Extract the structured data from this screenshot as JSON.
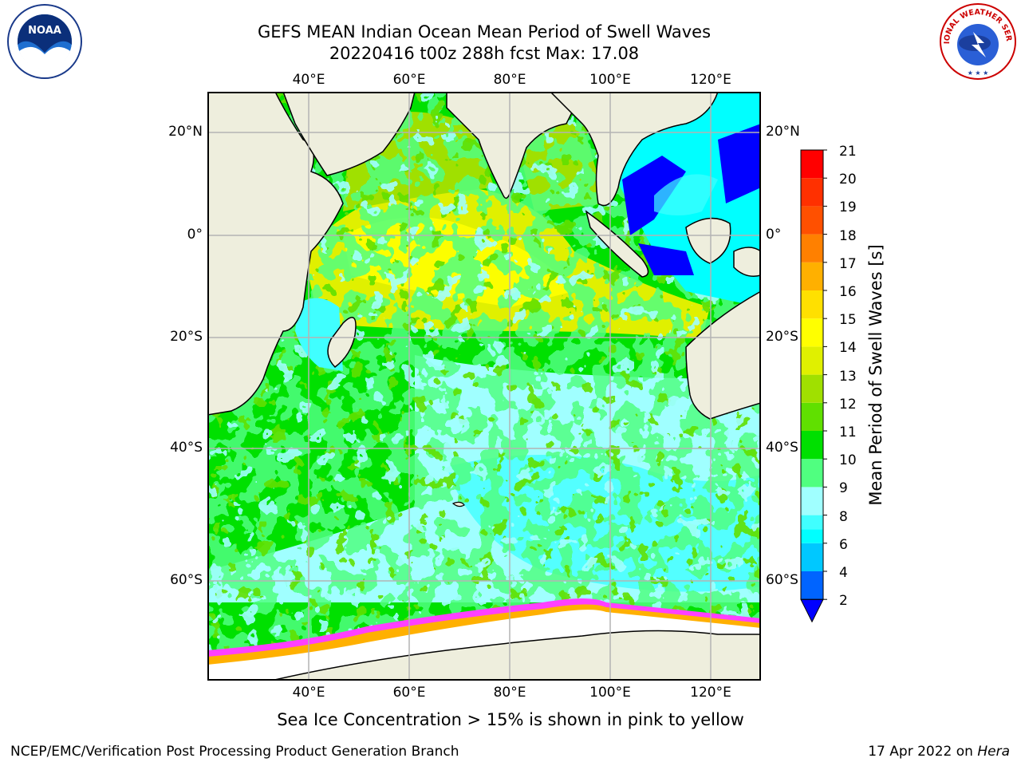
{
  "header": {
    "title_line1": "GEFS MEAN Indian Ocean Mean Period of Swell Waves",
    "title_line2": "20220416 t00z 288h fcst   Max: 17.08"
  },
  "logos": {
    "left": {
      "name": "noaa-logo",
      "text": "NOAA",
      "ring_text": "NATIONAL OCEANIC AND ATMOSPHERIC ADMINISTRATION · U.S. DEPARTMENT OF COMMERCE"
    },
    "right": {
      "name": "nws-logo",
      "ring_text": "NATIONAL WEATHER SERVICE"
    }
  },
  "map": {
    "lon_ticks_top": [
      "40°E",
      "60°E",
      "80°E",
      "100°E",
      "120°E"
    ],
    "lon_ticks_bottom": [
      "40°E",
      "60°E",
      "80°E",
      "100°E",
      "120°E"
    ],
    "lat_ticks_left": [
      "20°N",
      "0°",
      "20°S",
      "40°S",
      "60°S"
    ],
    "lat_ticks_right": [
      "20°N",
      "0°",
      "20°S",
      "40°S",
      "60°S"
    ],
    "colors": {
      "land": "#eeeedd",
      "sea_ice": "#ffffff",
      "grid": "#b3b3b3",
      "coast": "#000000"
    }
  },
  "colorbar": {
    "title": "Mean Period of Swell Waves [s]",
    "labels": [
      "21",
      "20",
      "19",
      "18",
      "17",
      "16",
      "15",
      "14",
      "13",
      "12",
      "11",
      "10",
      "9",
      "8",
      "6",
      "4",
      "2"
    ],
    "bins": [
      {
        "from": 2,
        "to": 4,
        "color": "#0064ff"
      },
      {
        "from": 4,
        "to": 6,
        "color": "#00c8ff"
      },
      {
        "from": 6,
        "to": 7,
        "color": "#00ffff"
      },
      {
        "from": 7,
        "to": 8,
        "color": "#40ffff"
      },
      {
        "from": 8,
        "to": 9,
        "color": "#a0ffff"
      },
      {
        "from": 9,
        "to": 10,
        "color": "#50ff80"
      },
      {
        "from": 10,
        "to": 11,
        "color": "#00e000"
      },
      {
        "from": 11,
        "to": 12,
        "color": "#60e000"
      },
      {
        "from": 12,
        "to": 13,
        "color": "#a0e000"
      },
      {
        "from": 13,
        "to": 14,
        "color": "#e0f000"
      },
      {
        "from": 14,
        "to": 15,
        "color": "#ffff00"
      },
      {
        "from": 15,
        "to": 16,
        "color": "#ffe000"
      },
      {
        "from": 16,
        "to": 17,
        "color": "#ffb000"
      },
      {
        "from": 17,
        "to": 18,
        "color": "#ff8000"
      },
      {
        "from": 18,
        "to": 19,
        "color": "#ff5000"
      },
      {
        "from": 19,
        "to": 20,
        "color": "#ff3000"
      },
      {
        "from": 20,
        "to": 21,
        "color": "#ff0000"
      }
    ],
    "under_color": "#0000ff"
  },
  "notes": {
    "sea_ice": "Sea Ice Concentration > 15% is shown in pink to yellow"
  },
  "footer": {
    "left": "NCEP/EMC/Verification Post Processing Product Generation Branch",
    "right_date": "17 Apr 2022 on ",
    "right_host": "Hera"
  }
}
